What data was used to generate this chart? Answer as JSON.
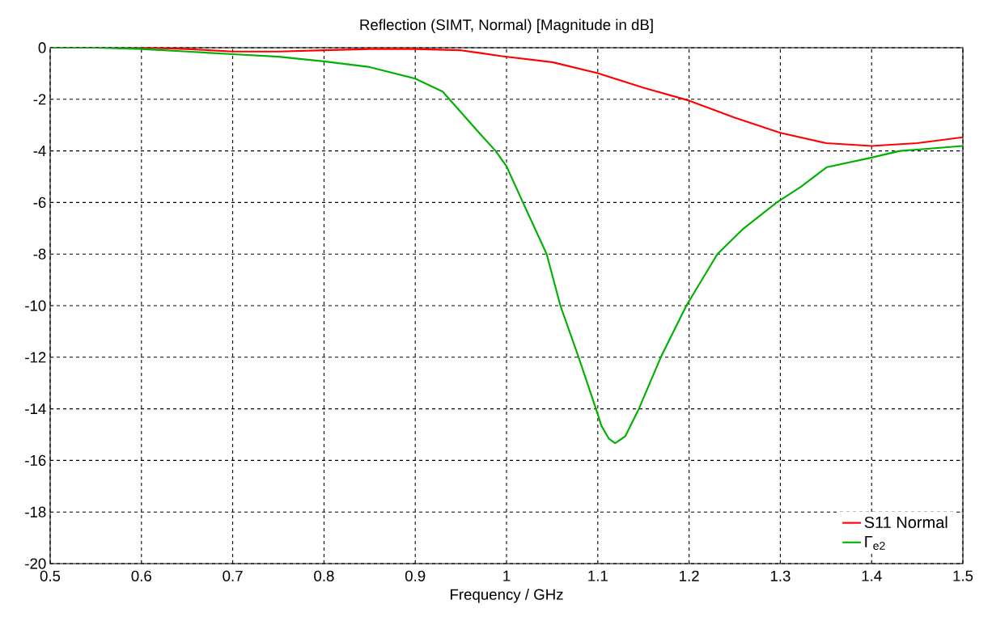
{
  "chart_data": {
    "type": "line",
    "title": "Reflection (SIMT, Normal) [Magnitude in dB]",
    "xlabel": "Frequency / GHz",
    "xlim": [
      0.5,
      1.5
    ],
    "ylim": [
      -20,
      0
    ],
    "xticks": [
      0.5,
      0.6,
      0.7,
      0.8,
      0.9,
      1,
      1.1,
      1.2,
      1.3,
      1.4,
      1.5
    ],
    "yticks": [
      -20,
      -18,
      -16,
      -14,
      -12,
      -10,
      -8,
      -6,
      -4,
      -2,
      0
    ],
    "grid": true,
    "legend": "bottom right",
    "series": [
      {
        "name": "S11 Normal",
        "color": "#ff0000",
        "x": [
          0.5,
          0.6,
          0.65,
          0.7,
          0.75,
          0.8,
          0.85,
          0.9,
          0.95,
          0.97,
          0.995,
          1.05,
          1.1,
          1.15,
          1.2,
          1.25,
          1.3,
          1.35,
          1.4,
          1.45,
          1.5
        ],
        "values": [
          0,
          0,
          -0.05,
          -0.15,
          -0.15,
          -0.1,
          -0.05,
          -0.05,
          -0.1,
          -0.2,
          -0.33,
          -0.56,
          -0.99,
          -1.55,
          -2.05,
          -2.71,
          -3.3,
          -3.7,
          -3.81,
          -3.7,
          -3.47
        ]
      },
      {
        "name": "Γ$_{e2}$",
        "color": "#00b000",
        "x": [
          0.5,
          0.55,
          0.6,
          0.65,
          0.7,
          0.75,
          0.8,
          0.85,
          0.9,
          0.93,
          0.95,
          0.97,
          0.988,
          1.0,
          1.018,
          1.044,
          1.059,
          1.079,
          1.098,
          1.104,
          1.112,
          1.119,
          1.13,
          1.145,
          1.169,
          1.197,
          1.231,
          1.26,
          1.296,
          1.323,
          1.351,
          1.4,
          1.431,
          1.45,
          1.5
        ],
        "values": [
          0,
          0,
          -0.05,
          -0.15,
          -0.25,
          -0.35,
          -0.53,
          -0.75,
          -1.2,
          -1.7,
          -2.5,
          -3.3,
          -4.0,
          -4.6,
          -6.0,
          -8.0,
          -10.0,
          -12.0,
          -14.0,
          -14.66,
          -15.15,
          -15.33,
          -15.07,
          -14.0,
          -12.0,
          -10.0,
          -8.0,
          -7.0,
          -6.0,
          -5.38,
          -4.63,
          -4.26,
          -4.0,
          -3.95,
          -3.81
        ]
      }
    ]
  }
}
